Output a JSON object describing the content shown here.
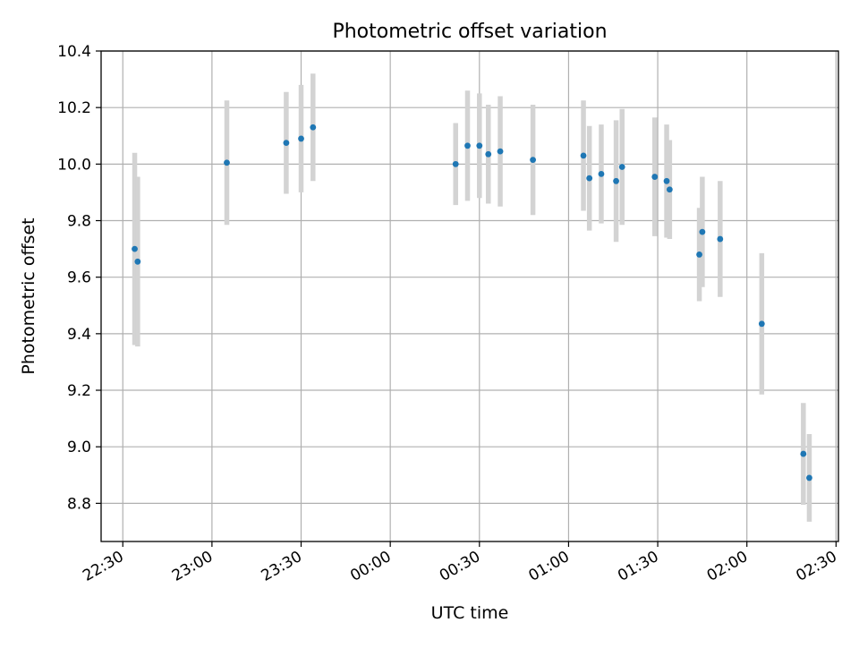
{
  "chart_data": {
    "type": "scatter",
    "title": "Photometric offset variation",
    "xlabel": "UTC time",
    "ylabel": "Photometric offset",
    "x_tick_labels": [
      "22:30",
      "23:00",
      "23:30",
      "00:00",
      "00:30",
      "01:00",
      "01:30",
      "02:00",
      "02:30"
    ],
    "x_ticks_minutes": [
      0,
      30,
      60,
      90,
      120,
      150,
      180,
      210,
      240
    ],
    "x_range_minutes": [
      -7.3,
      240.8
    ],
    "y_tick_labels": [
      "8.8",
      "9.0",
      "9.2",
      "9.4",
      "9.6",
      "9.8",
      "10.0",
      "10.2",
      "10.4"
    ],
    "y_ticks": [
      8.8,
      9.0,
      9.2,
      9.4,
      9.6,
      9.8,
      10.0,
      10.2,
      10.4
    ],
    "ylim": [
      8.665,
      10.4
    ],
    "grid": true,
    "colors": {
      "points": "#1f77b4",
      "error_bars": "#d3d3d3",
      "grid": "#b0b0b0",
      "axes": "#000000"
    },
    "series": [
      {
        "x": [
          "22:34",
          "22:35",
          "23:05",
          "23:25",
          "23:30",
          "23:34",
          "00:22",
          "00:26",
          "00:30",
          "00:33",
          "00:37",
          "00:48",
          "01:05",
          "01:07",
          "01:11",
          "01:16",
          "01:18",
          "01:29",
          "01:33",
          "01:34",
          "01:44",
          "01:45",
          "01:51",
          "02:05",
          "02:19",
          "02:21"
        ],
        "y": [
          9.7,
          9.655,
          10.005,
          10.075,
          10.09,
          10.13,
          10.0,
          10.065,
          10.065,
          10.035,
          10.045,
          10.015,
          10.03,
          9.95,
          9.965,
          9.94,
          9.99,
          9.955,
          9.94,
          9.91,
          9.68,
          9.76,
          9.735,
          9.435,
          8.975,
          8.89
        ],
        "yerr": [
          0.34,
          0.3,
          0.22,
          0.18,
          0.19,
          0.19,
          0.145,
          0.195,
          0.185,
          0.175,
          0.195,
          0.195,
          0.195,
          0.185,
          0.175,
          0.215,
          0.205,
          0.21,
          0.2,
          0.175,
          0.165,
          0.195,
          0.205,
          0.25,
          0.18,
          0.155
        ]
      }
    ]
  }
}
